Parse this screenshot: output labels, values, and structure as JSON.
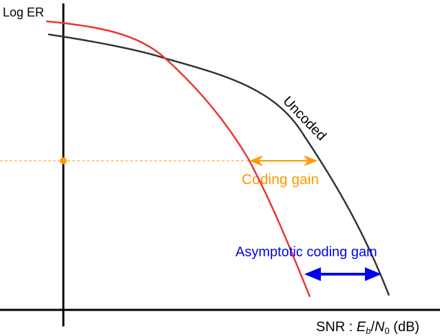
{
  "y_axis_label": "Log ER",
  "x_axis_label": {
    "prefix": "SNR : ",
    "e": "E",
    "e_sub": "b",
    "slash": "/",
    "n": "N",
    "n_sub": "0",
    "suffix": " (dB)"
  },
  "uncoded_label": "Uncoded",
  "coding_gain_label": "Coding gain",
  "asymptotic_label": "Asymptotic coding gain",
  "colors": {
    "coded": "#ee3333",
    "uncoded": "#333333",
    "coding_gain": "#ff9900",
    "asymptotic": "#0000ee",
    "axis": "#000000"
  }
}
